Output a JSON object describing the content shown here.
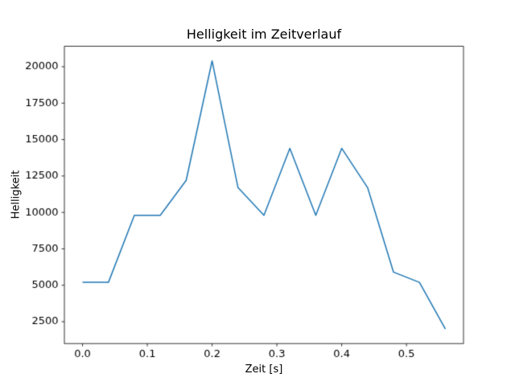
{
  "chart_data": {
    "type": "line",
    "title": "Helligkeit im Zeitverlauf",
    "xlabel": "Zeit [s]",
    "ylabel": "Helligkeit",
    "x": [
      0.0,
      0.04,
      0.08,
      0.12,
      0.16,
      0.2,
      0.24,
      0.28,
      0.32,
      0.36,
      0.4,
      0.44,
      0.48,
      0.52,
      0.56
    ],
    "y": [
      5200,
      5200,
      9800,
      9800,
      12200,
      20400,
      11700,
      9800,
      14400,
      9800,
      14400,
      11700,
      5900,
      5200,
      2000
    ],
    "xlim": [
      -0.028,
      0.588
    ],
    "ylim": [
      1000,
      21400
    ],
    "xticks": [
      0.0,
      0.1,
      0.2,
      0.3,
      0.4,
      0.5
    ],
    "xtick_labels": [
      "0.0",
      "0.1",
      "0.2",
      "0.3",
      "0.4",
      "0.5"
    ],
    "yticks": [
      2500,
      5000,
      7500,
      10000,
      12500,
      15000,
      17500,
      20000
    ],
    "ytick_labels": [
      "2500",
      "5000",
      "7500",
      "10000",
      "12500",
      "15000",
      "17500",
      "20000"
    ],
    "line_color": "#1f77b4",
    "axis_color": "#000000",
    "background": "#ffffff",
    "grid": false,
    "legend": "none"
  }
}
